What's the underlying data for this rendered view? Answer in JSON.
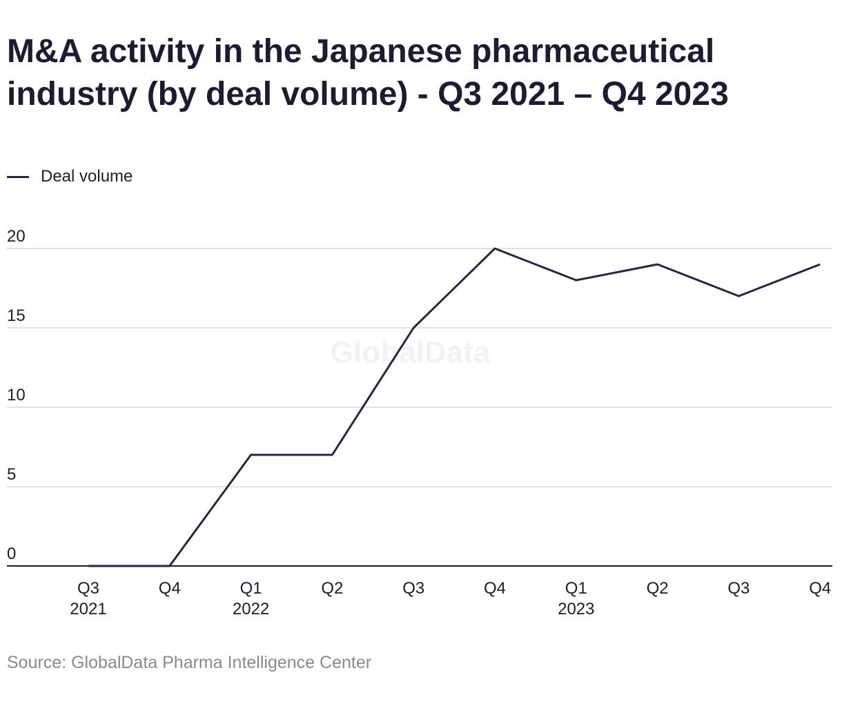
{
  "title": "M&A activity in the Japanese pharmaceutical industry (by deal volume) - Q3 2021 – Q4 2023",
  "source": "Source: GlobalData Pharma Intelligence Center",
  "watermark": "GlobalData",
  "colors": {
    "line": "#2e2148",
    "grid": "#d9d9d9",
    "axis": "#1c1b33",
    "text": "#1c1b33",
    "muted": "#8a8a8a"
  },
  "chart_data": {
    "type": "line",
    "title": "M&A activity in the Japanese pharmaceutical industry (by deal volume) - Q3 2021 – Q4 2023",
    "xlabel": "",
    "ylabel": "",
    "categories": [
      {
        "line1": "Q3",
        "line2": "2021"
      },
      {
        "line1": "Q4",
        "line2": ""
      },
      {
        "line1": "Q1",
        "line2": "2022"
      },
      {
        "line1": "Q2",
        "line2": ""
      },
      {
        "line1": "Q3",
        "line2": ""
      },
      {
        "line1": "Q4",
        "line2": ""
      },
      {
        "line1": "Q1",
        "line2": "2023"
      },
      {
        "line1": "Q2",
        "line2": ""
      },
      {
        "line1": "Q3",
        "line2": ""
      },
      {
        "line1": "Q4",
        "line2": ""
      }
    ],
    "series": [
      {
        "name": "Deal volume",
        "values": [
          0,
          0,
          7,
          7,
          15,
          20,
          18,
          19,
          17,
          19
        ]
      }
    ],
    "ylim": [
      0,
      20
    ],
    "yticks": [
      0,
      5,
      10,
      15,
      20
    ],
    "grid": true,
    "legend": "top-left"
  }
}
